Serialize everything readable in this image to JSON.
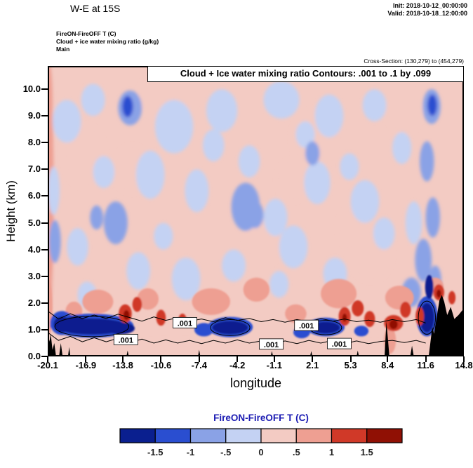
{
  "header": {
    "title": "W-E at 15S",
    "init": "Init: 2018-10-12_00:00:00",
    "valid": "Valid: 2018-10-18_12:00:00",
    "field_line1": "FireON-FireOFF T (C)",
    "field_line2": "Cloud + ice water mixing ratio (g/kg)",
    "field_line3": "Main",
    "cross_section": "Cross-Section: (130,279) to (454,279)"
  },
  "plot": {
    "inner_title": "Cloud + Ice water mixing ratio Contours: .001 to .1 by .099",
    "ylabel": "Height (km)",
    "xlabel": "longitude"
  },
  "chart_data": {
    "type": "heatmap",
    "description": "West-East vertical cross-section at 15S: FireON-FireOFF temperature difference (filled colors, C) with cloud + ice water mixing ratio contours (.001 to .1 by .099 g/kg); terrain silhouette in black.",
    "title": "W-E at 15S",
    "xlabel": "longitude",
    "ylabel": "Height (km)",
    "xlim": [
      -20.1,
      14.8
    ],
    "ylim": [
      0,
      10.87
    ],
    "xticks": [
      -20.1,
      -16.9,
      -13.8,
      -10.6,
      -7.4,
      -4.2,
      -1.1,
      2.1,
      5.3,
      8.4,
      11.6,
      14.8
    ],
    "xtick_labels": [
      "-20.1",
      "-16.9",
      "-13.8",
      "-10.6",
      "-7.4",
      "-4.2",
      "-1.1",
      "2.1",
      "5.3",
      "8.4",
      "11.6",
      "14.8"
    ],
    "yticks": [
      0,
      1,
      2,
      3,
      4,
      5,
      6,
      7,
      8,
      9,
      10
    ],
    "fill_field": "FireON-FireOFF T (C)",
    "contour_field": "Cloud + ice water mixing ratio (g/kg)",
    "contour_levels": [
      0.001,
      0.1
    ],
    "background_value": 0.25,
    "colorbar": {
      "title": "FireON-FireOFF T (C)",
      "levels": [
        -2,
        -1.5,
        -1,
        -0.5,
        0,
        0.5,
        1,
        1.5,
        2
      ],
      "colors": [
        "#0a1f8f",
        "#2a4ed0",
        "#8aa2e6",
        "#c4d2f3",
        "#f3cbc3",
        "#ee9f92",
        "#d03928",
        "#901004"
      ],
      "tick_labels": [
        "-1.5",
        "-1",
        "-.5",
        "0",
        ".5",
        "1",
        "1.5"
      ]
    },
    "anomalies_upper": [
      [
        -10,
        9.8,
        2.5,
        1.0,
        0.05
      ],
      [
        -17,
        7.5,
        1.8,
        1.2,
        0.05
      ],
      [
        2.5,
        8.2,
        2.2,
        1.1,
        0.05
      ],
      [
        7,
        3.8,
        1.8,
        1.0,
        0.05
      ],
      [
        -2,
        4.3,
        1.6,
        0.9,
        0.05
      ],
      [
        -13,
        7.0,
        1.6,
        0.9,
        0.05
      ],
      [
        9.8,
        9.2,
        1.5,
        0.9,
        0.05
      ],
      [
        -19,
        2.6,
        1.2,
        0.8,
        0.05
      ],
      [
        0.5,
        6.6,
        1.4,
        0.8,
        0.05
      ],
      [
        5.5,
        4.8,
        1.3,
        0.8,
        0.05
      ],
      [
        -4,
        0.3,
        16,
        0.35,
        0.05
      ],
      [
        -20.0,
        6.0,
        0.4,
        4.5,
        0.75
      ],
      [
        -20.0,
        9.5,
        0.3,
        1.5,
        0.75
      ],
      [
        -18.5,
        8.8,
        1.2,
        0.8,
        -0.25
      ],
      [
        -16.3,
        9.6,
        1.0,
        0.6,
        -0.25
      ],
      [
        -9.5,
        8.6,
        1.6,
        1.0,
        -0.25
      ],
      [
        -5.5,
        9.2,
        1.3,
        0.8,
        -0.25
      ],
      [
        -0.5,
        9.6,
        1.5,
        0.7,
        -0.25
      ],
      [
        3.5,
        9.0,
        1.2,
        0.8,
        -0.25
      ],
      [
        7.3,
        9.4,
        1.0,
        0.6,
        -0.25
      ],
      [
        -11.5,
        6.8,
        1.2,
        0.9,
        -0.25
      ],
      [
        -7.6,
        6.2,
        1.0,
        0.8,
        -0.25
      ],
      [
        -1.0,
        5.2,
        1.0,
        0.7,
        -0.25
      ],
      [
        2.5,
        6.5,
        1.1,
        0.8,
        -0.25
      ],
      [
        6.5,
        5.8,
        1.2,
        0.8,
        -0.25
      ],
      [
        -17.6,
        4.1,
        0.9,
        0.7,
        -0.25
      ],
      [
        -12.5,
        3.2,
        1.0,
        0.7,
        -0.25
      ],
      [
        -8.5,
        2.9,
        1.2,
        0.8,
        -0.25
      ],
      [
        -4.5,
        3.4,
        1.0,
        0.6,
        -0.25
      ],
      [
        0.5,
        4.1,
        1.2,
        0.8,
        -0.25
      ],
      [
        4.0,
        3.1,
        1.0,
        0.6,
        -0.25
      ],
      [
        -6.2,
        7.9,
        0.9,
        0.6,
        -0.25
      ],
      [
        1.5,
        8.3,
        0.8,
        0.5,
        -0.25
      ],
      [
        9.6,
        7.8,
        0.8,
        0.6,
        -0.25
      ],
      [
        -15.4,
        6.9,
        0.9,
        0.6,
        -0.25
      ],
      [
        -10.4,
        4.5,
        0.8,
        0.5,
        -0.25
      ],
      [
        8.1,
        4.6,
        0.9,
        0.6,
        -0.25
      ],
      [
        -0.7,
        2.7,
        0.8,
        0.5,
        -0.25
      ],
      [
        -16.8,
        2.3,
        0.8,
        0.5,
        -0.25
      ],
      [
        5.2,
        7.1,
        0.8,
        0.5,
        -0.25
      ],
      [
        -3.2,
        7.3,
        0.9,
        0.6,
        -0.25
      ],
      [
        -19.6,
        6.2,
        0.5,
        0.9,
        -0.25
      ],
      [
        10.6,
        5.0,
        0.7,
        0.8,
        -0.25
      ],
      [
        -13.2,
        9.3,
        1.0,
        0.65,
        -0.75
      ],
      [
        -14.4,
        5.0,
        1.0,
        0.8,
        -0.75
      ],
      [
        -3.5,
        5.6,
        1.2,
        0.9,
        -0.75
      ],
      [
        -19.5,
        4.3,
        0.5,
        0.8,
        -0.75
      ],
      [
        12.1,
        9.35,
        0.75,
        0.65,
        -0.75
      ],
      [
        11.7,
        7.3,
        0.6,
        0.75,
        -0.75
      ],
      [
        12.2,
        5.2,
        0.6,
        0.75,
        -0.75
      ],
      [
        11.4,
        3.6,
        0.7,
        0.8,
        -0.75
      ],
      [
        10.4,
        2.4,
        0.8,
        0.55,
        -0.75
      ],
      [
        -2.7,
        5.3,
        0.7,
        0.5,
        -0.75
      ],
      [
        2.1,
        7.6,
        0.6,
        0.45,
        -0.75
      ],
      [
        -16.0,
        5.2,
        0.55,
        0.45,
        -0.75
      ],
      [
        12.4,
        2.9,
        0.5,
        0.5,
        -0.75
      ],
      [
        -13.4,
        9.35,
        0.45,
        0.4,
        -1.25
      ],
      [
        12.15,
        9.4,
        0.4,
        0.4,
        -1.25
      ]
    ],
    "anomalies_low": [
      [
        -15.9,
        2.05,
        1.3,
        0.45,
        0.75
      ],
      [
        -6.4,
        2.05,
        1.6,
        0.5,
        0.75
      ],
      [
        -2.6,
        2.5,
        1.1,
        0.45,
        0.75
      ],
      [
        4.3,
        2.35,
        1.5,
        0.55,
        0.75
      ],
      [
        -11.7,
        2.15,
        0.9,
        0.4,
        0.75
      ],
      [
        9.4,
        2.2,
        1.2,
        0.45,
        0.75
      ],
      [
        0.7,
        1.6,
        0.9,
        0.35,
        0.75
      ],
      [
        12.4,
        2.6,
        0.7,
        0.35,
        0.75
      ],
      [
        -17.9,
        1.7,
        0.7,
        0.35,
        0.75
      ],
      [
        8.6,
        0.6,
        0.5,
        0.5,
        0.75
      ],
      [
        -20.0,
        1.8,
        0.3,
        1.0,
        0.75
      ],
      [
        -16.4,
        1.15,
        3.5,
        0.45,
        -1.2
      ],
      [
        -4.8,
        1.1,
        1.9,
        0.38,
        -1.2
      ],
      [
        3.2,
        1.1,
        1.6,
        0.35,
        -1.2
      ],
      [
        11.7,
        1.5,
        0.9,
        0.75,
        -1.2
      ],
      [
        -18.9,
        1.25,
        1.0,
        0.45,
        -1.2
      ],
      [
        -7.0,
        1.0,
        0.8,
        0.25,
        -1.2
      ],
      [
        1.2,
        0.9,
        0.7,
        0.22,
        -1.2
      ],
      [
        6.2,
        0.95,
        0.6,
        0.2,
        -1.2
      ],
      [
        -16.4,
        1.12,
        3.0,
        0.3,
        -1.9
      ],
      [
        -14.0,
        1.05,
        1.2,
        0.22,
        -1.9
      ],
      [
        -17.8,
        1.25,
        1.0,
        0.25,
        -1.9
      ],
      [
        -4.8,
        1.08,
        1.5,
        0.25,
        -1.9
      ],
      [
        3.2,
        1.08,
        1.2,
        0.22,
        -1.9
      ],
      [
        11.7,
        1.45,
        0.6,
        0.55,
        -1.9
      ],
      [
        -18.9,
        1.2,
        0.7,
        0.3,
        -1.9
      ],
      [
        11.9,
        2.6,
        0.35,
        0.45,
        -1.9
      ],
      [
        -13.6,
        1.6,
        0.55,
        0.35,
        1.25
      ],
      [
        -10.6,
        1.45,
        0.4,
        0.3,
        1.25
      ],
      [
        -8.8,
        1.35,
        0.35,
        0.25,
        1.25
      ],
      [
        4.8,
        1.5,
        0.5,
        0.35,
        1.25
      ],
      [
        5.9,
        1.8,
        0.5,
        0.3,
        1.25
      ],
      [
        6.9,
        1.4,
        0.45,
        0.3,
        1.25
      ],
      [
        8.9,
        1.25,
        0.8,
        0.3,
        1.25
      ],
      [
        11.1,
        1.5,
        0.35,
        0.35,
        1.25
      ],
      [
        12.7,
        2.4,
        0.45,
        0.3,
        1.25
      ],
      [
        -12.6,
        1.95,
        0.4,
        0.28,
        1.25
      ],
      [
        9.9,
        1.75,
        0.45,
        0.3,
        1.25
      ],
      [
        13.8,
        2.2,
        0.3,
        0.25,
        1.25
      ],
      [
        -13.5,
        1.55,
        0.25,
        0.18,
        1.75
      ],
      [
        8.9,
        1.2,
        0.35,
        0.18,
        1.75
      ],
      [
        4.8,
        1.45,
        0.2,
        0.15,
        1.75
      ],
      [
        12.7,
        2.35,
        0.2,
        0.15,
        1.75
      ]
    ],
    "terrain": [
      [
        [
          11.85,
          0
        ],
        [
          12.0,
          0.55
        ],
        [
          12.15,
          1.1
        ],
        [
          12.3,
          0.85
        ],
        [
          12.55,
          1.55
        ],
        [
          12.75,
          2.1
        ],
        [
          12.95,
          2.3
        ],
        [
          13.15,
          2.05
        ],
        [
          13.4,
          1.55
        ],
        [
          13.7,
          1.85
        ],
        [
          14.0,
          1.4
        ],
        [
          14.35,
          1.55
        ],
        [
          14.8,
          1.8
        ],
        [
          14.8,
          0
        ]
      ],
      [
        [
          8.15,
          0
        ],
        [
          8.3,
          1.3
        ],
        [
          8.45,
          0.55
        ],
        [
          8.55,
          0
        ]
      ],
      [
        [
          -20.1,
          0
        ],
        [
          -20.1,
          0.95
        ],
        [
          -19.95,
          0.55
        ],
        [
          -19.85,
          0.85
        ],
        [
          -19.7,
          0.25
        ],
        [
          -19.55,
          0.5
        ],
        [
          -19.4,
          0
        ]
      ],
      [
        [
          -19.15,
          0
        ],
        [
          -19.0,
          0.5
        ],
        [
          -18.85,
          0
        ]
      ],
      [
        [
          -18.4,
          0
        ],
        [
          -18.3,
          0.35
        ],
        [
          -18.2,
          0
        ]
      ],
      [
        [
          -13.5,
          0
        ],
        [
          -13.4,
          0.22
        ],
        [
          -13.3,
          0
        ]
      ],
      [
        [
          -7.5,
          0
        ],
        [
          -7.4,
          0.25
        ],
        [
          -7.3,
          0
        ]
      ],
      [
        [
          -1.4,
          0
        ],
        [
          -1.3,
          0.2
        ],
        [
          -1.2,
          0
        ]
      ],
      [
        [
          1.9,
          0
        ],
        [
          2.0,
          0.2
        ],
        [
          2.1,
          0
        ]
      ],
      [
        [
          5.8,
          0
        ],
        [
          5.9,
          0.22
        ],
        [
          6.0,
          0
        ]
      ],
      [
        [
          10.3,
          0
        ],
        [
          10.45,
          0.4
        ],
        [
          10.6,
          0
        ]
      ]
    ],
    "contour_lines": [
      [
        [
          -20.1,
          1.7
        ],
        [
          -19.2,
          1.4
        ],
        [
          -18.2,
          1.6
        ],
        [
          -17.2,
          1.42
        ],
        [
          -16.2,
          1.55
        ],
        [
          -15.2,
          1.42
        ],
        [
          -14.2,
          1.58
        ],
        [
          -13.2,
          1.45
        ],
        [
          -12.2,
          1.32
        ],
        [
          -11.2,
          1.48
        ],
        [
          -10.2,
          1.35
        ],
        [
          -9.2,
          1.45
        ],
        [
          -8.2,
          1.32
        ],
        [
          -7.2,
          1.4
        ],
        [
          -6.2,
          1.3
        ],
        [
          -5.2,
          1.45
        ],
        [
          -4.2,
          1.35
        ],
        [
          -3.2,
          1.42
        ],
        [
          -2.2,
          1.3
        ],
        [
          -1.2,
          1.38
        ],
        [
          -0.2,
          1.28
        ],
        [
          0.8,
          1.38
        ],
        [
          1.8,
          1.3
        ],
        [
          2.8,
          1.42
        ],
        [
          3.8,
          1.32
        ],
        [
          4.8,
          1.4
        ],
        [
          5.8,
          1.3
        ],
        [
          6.8,
          1.36
        ],
        [
          7.8,
          1.28
        ],
        [
          8.8,
          1.38
        ],
        [
          9.8,
          1.3
        ],
        [
          10.8,
          1.38
        ],
        [
          11.6,
          1.25
        ]
      ],
      [
        [
          -20.1,
          0.9
        ],
        [
          -19.2,
          0.6
        ],
        [
          -18.2,
          0.75
        ],
        [
          -17.2,
          0.55
        ],
        [
          -16.2,
          0.7
        ],
        [
          -15.2,
          0.55
        ],
        [
          -14.2,
          0.68
        ],
        [
          -13.2,
          0.52
        ],
        [
          -12.2,
          0.65
        ],
        [
          -11.2,
          0.5
        ],
        [
          -10.2,
          0.62
        ],
        [
          -9.2,
          0.5
        ],
        [
          -8.2,
          0.6
        ],
        [
          -7.2,
          0.48
        ],
        [
          -6.2,
          0.6
        ],
        [
          -5.2,
          0.5
        ],
        [
          -4.2,
          0.62
        ],
        [
          -3.2,
          0.5
        ],
        [
          -2.2,
          0.58
        ],
        [
          -1.2,
          0.46
        ],
        [
          -0.2,
          0.58
        ],
        [
          0.8,
          0.48
        ],
        [
          1.8,
          0.6
        ],
        [
          2.8,
          0.5
        ],
        [
          3.8,
          0.6
        ],
        [
          4.8,
          0.48
        ],
        [
          5.8,
          0.58
        ],
        [
          6.8,
          0.48
        ],
        [
          7.8,
          0.56
        ],
        [
          8.8,
          0.6
        ],
        [
          9.8,
          0.52
        ],
        [
          10.8,
          0.6
        ],
        [
          11.6,
          0.5
        ]
      ]
    ],
    "contour_loops": [
      [
        -16.4,
        1.12,
        3.1,
        0.38
      ],
      [
        -4.8,
        1.08,
        1.65,
        0.3
      ],
      [
        3.2,
        1.08,
        1.35,
        0.27
      ],
      [
        11.7,
        1.45,
        0.72,
        0.62
      ]
    ],
    "contour_labels": [
      {
        "text": ".001",
        "lon": -13.55,
        "km": 0.62
      },
      {
        "text": ".001",
        "lon": -8.6,
        "km": 1.25
      },
      {
        "text": ".001",
        "lon": -1.35,
        "km": 0.45
      },
      {
        "text": ".001",
        "lon": 1.6,
        "km": 1.15
      },
      {
        "text": ".001",
        "lon": 4.35,
        "km": 0.47
      }
    ]
  }
}
